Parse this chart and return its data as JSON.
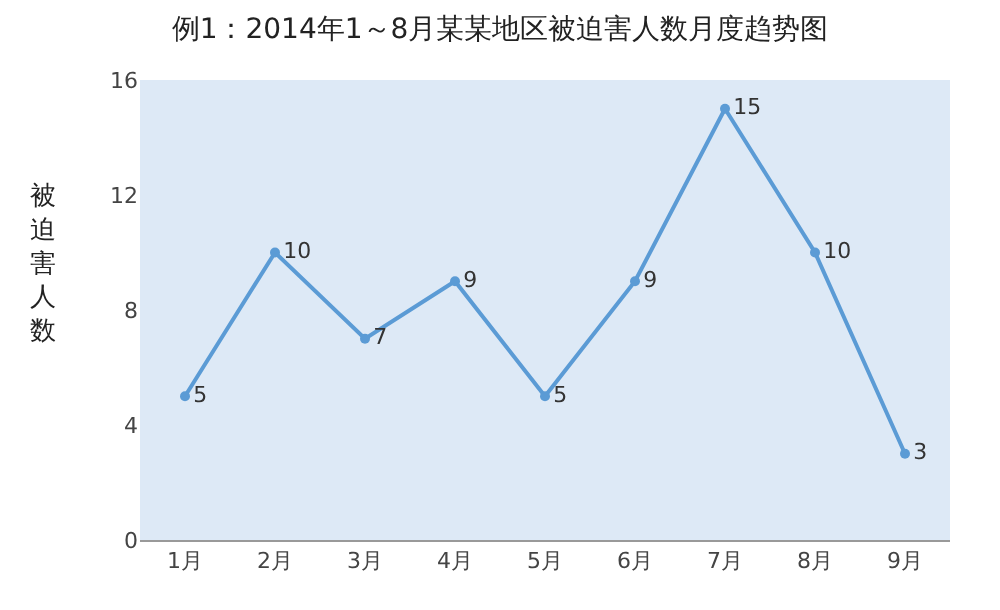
{
  "chart_data": {
    "type": "line",
    "title": "例1：2014年1～8月某某地区被迫害人数月度趋势图",
    "ylabel": "被迫害人数",
    "categories": [
      "1月",
      "2月",
      "3月",
      "4月",
      "5月",
      "6月",
      "7月",
      "8月",
      "9月"
    ],
    "series": [
      {
        "color": "#5b9bd5",
        "values": [
          5,
          10,
          7,
          9,
          5,
          9,
          15,
          10,
          3
        ]
      }
    ],
    "ylim": [
      0,
      16
    ],
    "yticks": [
      0,
      4,
      8,
      12,
      16
    ],
    "data_labels": true,
    "marker": "circle",
    "line_style": "solid",
    "grid": false
  }
}
